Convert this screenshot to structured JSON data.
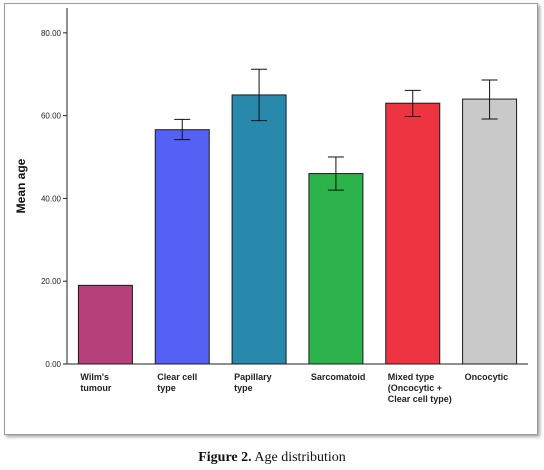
{
  "caption": {
    "label": "Figure 2.",
    "text": "Age distribution"
  },
  "chart_data": {
    "type": "bar",
    "ylabel": "Mean age",
    "xlabel": "",
    "ylim": [
      0,
      86
    ],
    "yticks": [
      "0.00",
      "20.00",
      "40.00",
      "60.00",
      "80.00"
    ],
    "ytick_values": [
      0,
      20,
      40,
      60,
      80
    ],
    "grid": false,
    "categories": [
      [
        "Wilm's",
        "tumour"
      ],
      [
        "Clear cell",
        "type"
      ],
      [
        "Papillary",
        "type"
      ],
      [
        "Sarcomatoid"
      ],
      [
        "Mixed type",
        "(Oncocytic +",
        "Clear cell type)"
      ],
      [
        "Oncocytic"
      ]
    ],
    "values": [
      19.0,
      56.6,
      65.0,
      46.0,
      63.0,
      64.0
    ],
    "error_low": [
      null,
      54.2,
      58.8,
      42.0,
      59.8,
      59.2
    ],
    "error_high": [
      null,
      59.1,
      71.2,
      50.0,
      66.1,
      68.6
    ],
    "colors": [
      "#b5407a",
      "#5560f5",
      "#2889ad",
      "#2db34b",
      "#ee3440",
      "#c9c9c9"
    ]
  }
}
